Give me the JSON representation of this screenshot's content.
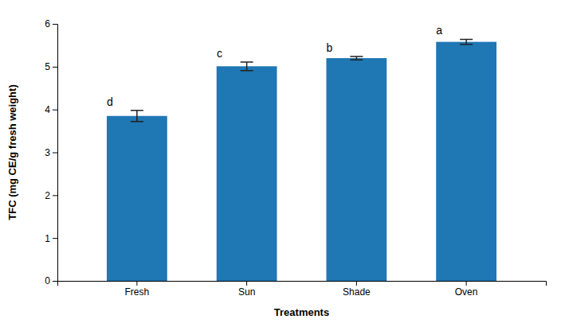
{
  "chart_data": {
    "type": "bar",
    "categories": [
      "Fresh",
      "Sun",
      "Shade",
      "Oven"
    ],
    "values": [
      3.85,
      5.01,
      5.2,
      5.58
    ],
    "errors": [
      0.13,
      0.1,
      0.04,
      0.06
    ],
    "letters": [
      "d",
      "c",
      "b",
      "a"
    ],
    "xlabel": "Treatments",
    "ylabel": "TFC (mg CE/g fresh weight)",
    "ylim": [
      0,
      6
    ],
    "yticks": [
      0,
      1,
      2,
      3,
      4,
      5,
      6
    ],
    "grid": false
  }
}
